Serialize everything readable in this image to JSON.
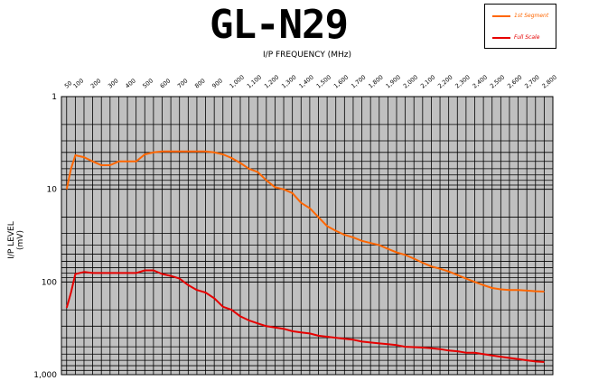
{
  "chart_data": {
    "type": "line",
    "title": "GL-N29",
    "xlabel": "I/P FREQUENCY (MHz)",
    "ylabel": "I/P LEVEL (mV)",
    "x_tick_labels": [
      "50",
      "100",
      "200",
      "300",
      "400",
      "500",
      "600",
      "700",
      "800",
      "900",
      "1,000",
      "1,100",
      "1,200",
      "1,300",
      "1,400",
      "1,500",
      "1,600",
      "1,700",
      "1,800",
      "1,900",
      "2,000",
      "2,100",
      "2,200",
      "2,300",
      "2,400",
      "2,500",
      "2,600",
      "2,700",
      "2,800"
    ],
    "y_tick_labels": [
      "1",
      "10",
      "100",
      "1,000"
    ],
    "y_scale": "log",
    "y_inverted": true,
    "ylim": [
      1,
      1000
    ],
    "xlim": [
      20,
      2850
    ],
    "grid": true,
    "legend_position": "top-right",
    "plot_background": "#c0c0c0",
    "series": [
      {
        "name": "1st Segment",
        "color": "#ff6600",
        "x": [
          50,
          75,
          100,
          150,
          200,
          250,
          300,
          350,
          400,
          450,
          500,
          550,
          600,
          650,
          700,
          750,
          800,
          850,
          900,
          950,
          1000,
          1050,
          1100,
          1150,
          1200,
          1250,
          1300,
          1350,
          1400,
          1450,
          1500,
          1550,
          1600,
          1650,
          1700,
          1750,
          1800,
          1850,
          1900,
          1950,
          2000,
          2050,
          2100,
          2150,
          2200,
          2250,
          2300,
          2350,
          2400,
          2450,
          2500,
          2550,
          2600,
          2650,
          2700,
          2750,
          2800
        ],
        "values": [
          10,
          6,
          4.3,
          4.5,
          5,
          5.5,
          5.5,
          5,
          5,
          5,
          4.2,
          4,
          3.9,
          3.9,
          3.9,
          3.9,
          3.9,
          3.9,
          4,
          4.2,
          4.6,
          5.2,
          6,
          6.5,
          8,
          9.5,
          10,
          11,
          14,
          16,
          20,
          25,
          28,
          31,
          33,
          36,
          38,
          40,
          44,
          48,
          51,
          56,
          62,
          68,
          72,
          77,
          84,
          92,
          100,
          108,
          116,
          120,
          122,
          122,
          124,
          126,
          127
        ],
        "note": ""
      },
      {
        "name": "Full Scale",
        "color": "#e60000",
        "x": [
          50,
          75,
          100,
          150,
          200,
          250,
          300,
          350,
          400,
          450,
          500,
          550,
          600,
          650,
          700,
          750,
          800,
          850,
          900,
          950,
          1000,
          1050,
          1100,
          1150,
          1200,
          1250,
          1300,
          1350,
          1400,
          1450,
          1500,
          1550,
          1600,
          1650,
          1700,
          1750,
          1800,
          1850,
          1900,
          1950,
          2000,
          2050,
          2100,
          2150,
          2200,
          2250,
          2300,
          2350,
          2400,
          2450,
          2500,
          2550,
          2600,
          2650,
          2700,
          2750,
          2800
        ],
        "values": [
          190,
          130,
          82,
          78,
          80,
          80,
          80,
          80,
          80,
          80,
          75,
          75,
          82,
          86,
          92,
          108,
          122,
          130,
          150,
          185,
          200,
          235,
          260,
          280,
          300,
          310,
          320,
          340,
          350,
          360,
          380,
          390,
          400,
          410,
          420,
          440,
          450,
          460,
          470,
          480,
          500,
          505,
          510,
          520,
          530,
          550,
          560,
          580,
          580,
          600,
          620,
          640,
          660,
          680,
          700,
          720,
          730
        ]
      }
    ]
  }
}
